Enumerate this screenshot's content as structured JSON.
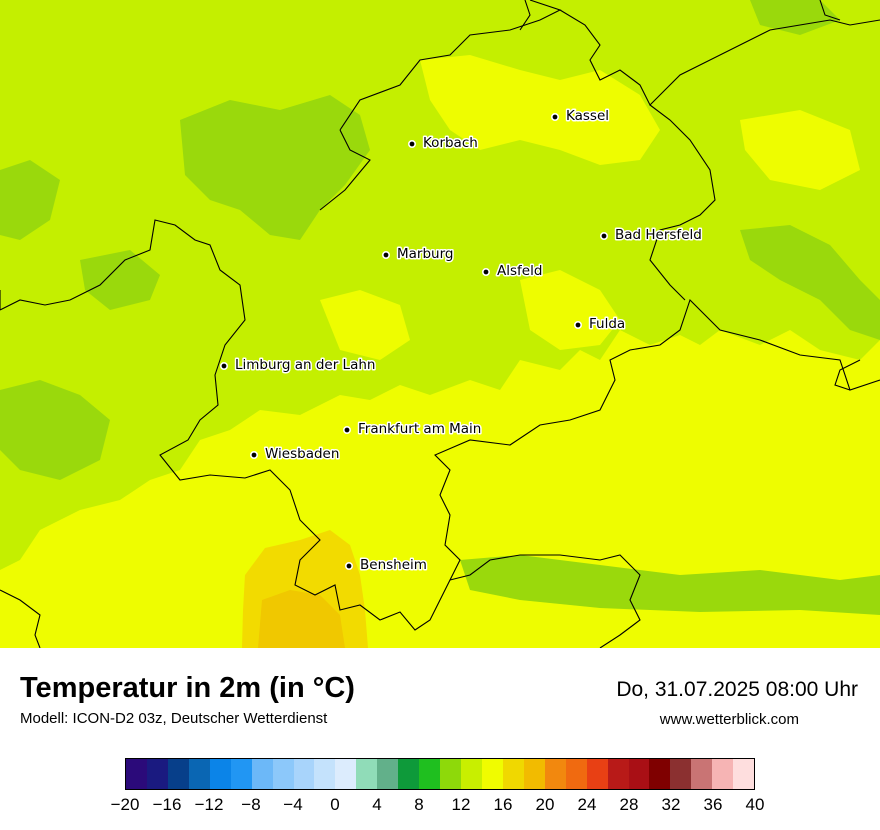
{
  "title": "Temperatur in 2m (in °C)",
  "subtitle": "Modell: ICON-D2 03z, Deutscher Wetterdienst",
  "datetime": "Do, 31.07.2025 08:00 Uhr",
  "site": "www.wetterblick.com",
  "cities": [
    {
      "name": "Kassel"
    },
    {
      "name": "Korbach"
    },
    {
      "name": "Bad Hersfeld"
    },
    {
      "name": "Marburg"
    },
    {
      "name": "Alsfeld"
    },
    {
      "name": "Fulda"
    },
    {
      "name": "Limburg an der Lahn"
    },
    {
      "name": "Frankfurt am Main"
    },
    {
      "name": "Wiesbaden"
    },
    {
      "name": "Bensheim"
    }
  ],
  "legend": {
    "ticks": [
      "−20",
      "−16",
      "−12",
      "−8",
      "−4",
      "0",
      "4",
      "8",
      "12",
      "16",
      "20",
      "24",
      "28",
      "32",
      "36",
      "40"
    ],
    "colors": [
      "#2b0a7a",
      "#1a1a80",
      "#073f8a",
      "#0a66b3",
      "#0b84e8",
      "#2196f3",
      "#6cb8f8",
      "#8cc8fa",
      "#a8d4fb",
      "#c4e2fc",
      "#dcecfd",
      "#90dcb8",
      "#62b08a",
      "#0e9a3a",
      "#1fbf1f",
      "#8ed90a",
      "#c8ef00",
      "#f0fc00",
      "#f0d800",
      "#f2bb00",
      "#f2880e",
      "#f06a10",
      "#e84014",
      "#b81a18",
      "#a90f15",
      "#7f0000",
      "#8b3030",
      "#c97474",
      "#f6b4b4",
      "#fedede"
    ]
  },
  "field_colors": {
    "green_dark": "#9ad90c",
    "green": "#c4ef00",
    "yellow": "#eefd00",
    "yellow_warm": "#f2db00"
  }
}
